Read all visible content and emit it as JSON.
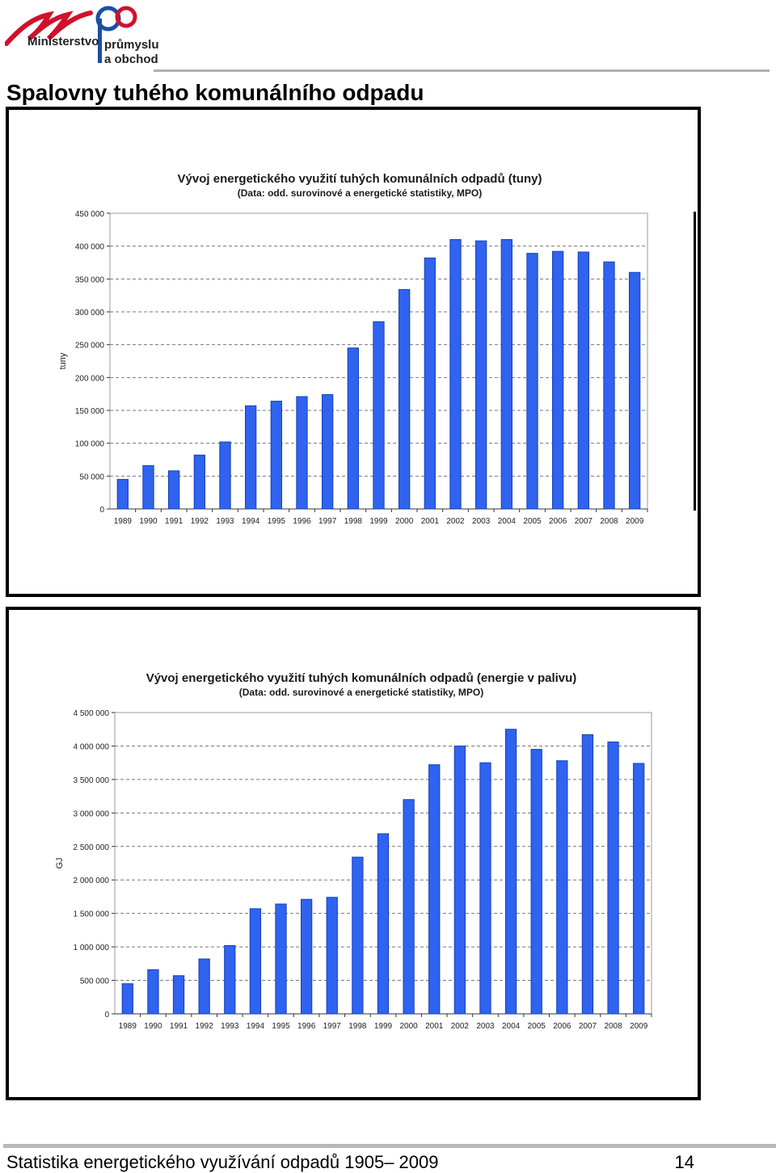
{
  "header": {
    "logo_text": {
      "letters": "mpo",
      "line1": "Ministerstvo",
      "line2": "průmyslu",
      "line3": "a obchodu"
    },
    "title": "Spalovny tuhého komunálního odpadu"
  },
  "colors": {
    "bar": "#2f63f0",
    "bar_edge": "#1640b8",
    "logo_red": "#d0112b",
    "logo_blue": "#1b4ea3",
    "grid": "#777777"
  },
  "chart_data": [
    {
      "type": "bar",
      "title": "Vývoj energetického využití tuhých komunálních odpadů (tuny)",
      "subtitle": "(Data: odd. surovinové a energetické statistiky, MPO)",
      "xlabel": "",
      "ylabel": "tuny",
      "ylim": [
        0,
        450000
      ],
      "grid": true,
      "yticks": [
        0,
        50000,
        100000,
        150000,
        200000,
        250000,
        300000,
        350000,
        400000,
        450000
      ],
      "ytick_labels": [
        "0",
        "50 000",
        "100 000",
        "150 000",
        "200 000",
        "250 000",
        "300 000",
        "350 000",
        "400 000",
        "450 000"
      ],
      "categories": [
        "1989",
        "1990",
        "1991",
        "1992",
        "1993",
        "1994",
        "1995",
        "1996",
        "1997",
        "1998",
        "1999",
        "2000",
        "2001",
        "2002",
        "2003",
        "2004",
        "2005",
        "2006",
        "2007",
        "2008",
        "2009"
      ],
      "values": [
        45000,
        66000,
        58000,
        82000,
        102000,
        157000,
        164000,
        171000,
        174000,
        245000,
        285000,
        334000,
        382000,
        410000,
        408000,
        410000,
        389000,
        392000,
        391000,
        376000,
        360000
      ]
    },
    {
      "type": "bar",
      "title": "Vývoj energetického využití tuhých komunálních odpadů (energie v palivu)",
      "subtitle": "(Data: odd. surovinové a energetické statistiky, MPO)",
      "xlabel": "",
      "ylabel": "GJ",
      "ylim": [
        0,
        4500000
      ],
      "grid": true,
      "yticks": [
        0,
        500000,
        1000000,
        1500000,
        2000000,
        2500000,
        3000000,
        3500000,
        4000000,
        4500000
      ],
      "ytick_labels": [
        "0",
        "500 000",
        "1 000 000",
        "1 500 000",
        "2 000 000",
        "2 500 000",
        "3 000 000",
        "3 500 000",
        "4 000 000",
        "4 500 000"
      ],
      "categories": [
        "1989",
        "1990",
        "1991",
        "1992",
        "1993",
        "1994",
        "1995",
        "1996",
        "1997",
        "1998",
        "1999",
        "2000",
        "2001",
        "2002",
        "2003",
        "2004",
        "2005",
        "2006",
        "2007",
        "2008",
        "2009"
      ],
      "values": [
        450000,
        660000,
        570000,
        820000,
        1020000,
        1570000,
        1640000,
        1710000,
        1740000,
        2340000,
        2690000,
        3200000,
        3720000,
        4000000,
        3750000,
        4250000,
        3950000,
        3780000,
        4170000,
        4060000,
        3740000
      ]
    }
  ],
  "footer": {
    "left": "Statistika energetického využívání odpadů 1905– 2009",
    "page_number": "14"
  }
}
